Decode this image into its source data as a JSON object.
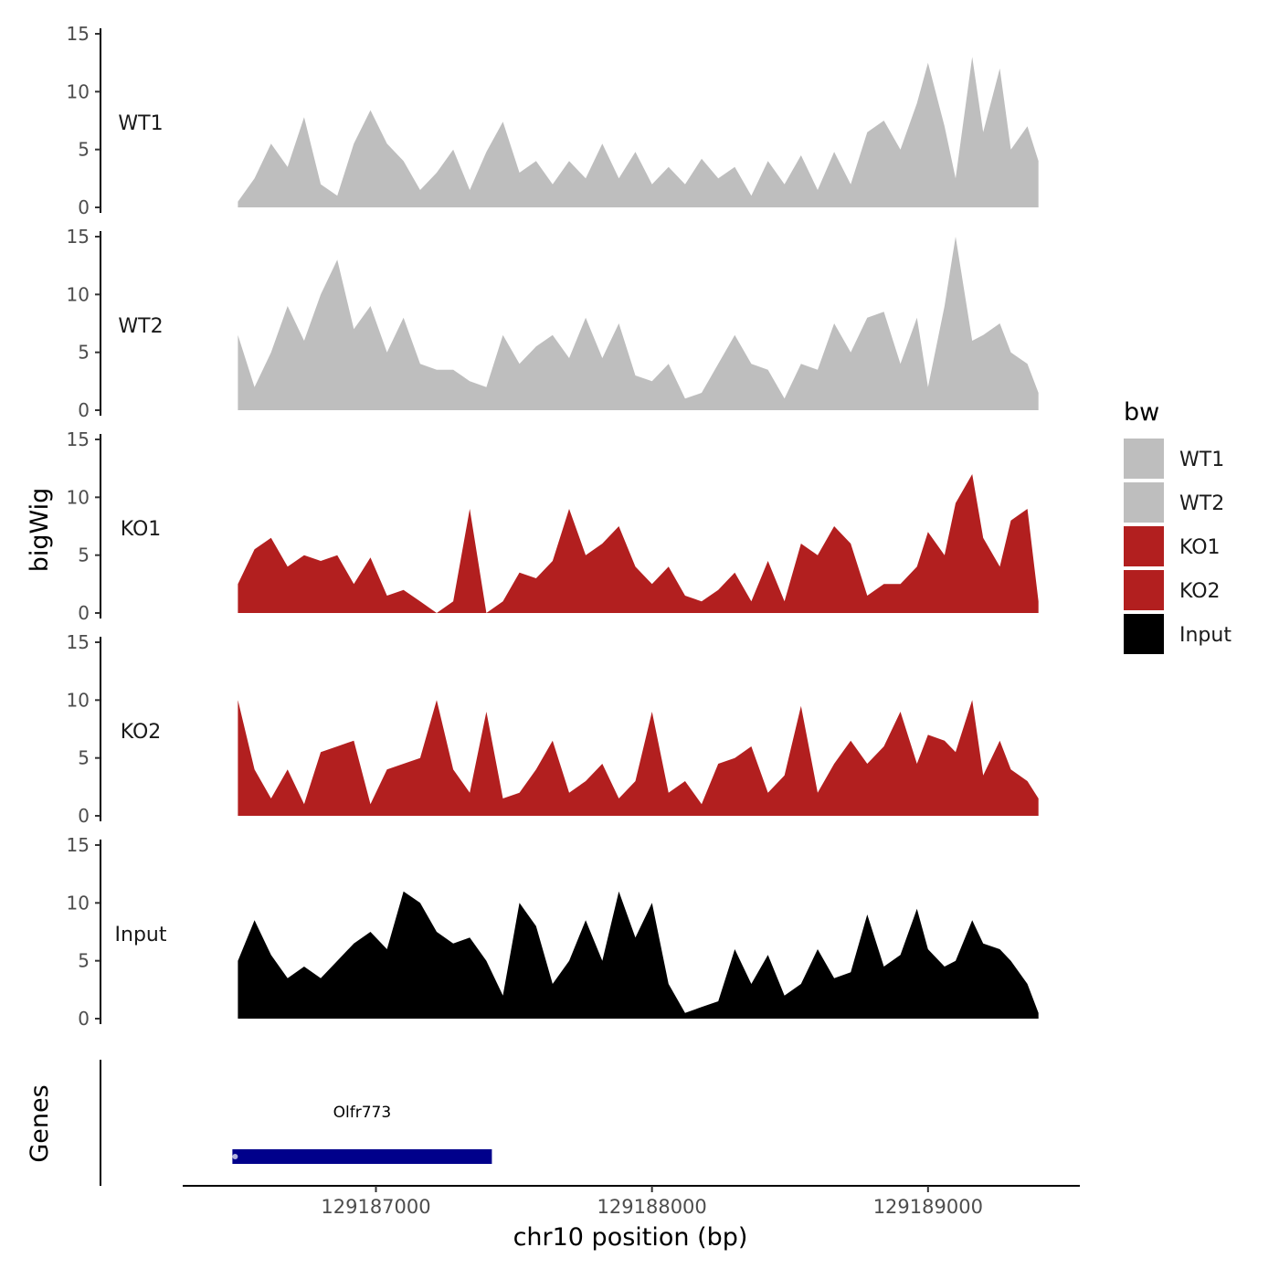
{
  "chart_data": {
    "type": "area",
    "xlabel": "chr10 position (bp)",
    "ylabel": "bigWig",
    "genes_label": "Genes",
    "x_range": [
      129186500,
      129189400
    ],
    "x_view": [
      129186300,
      129189550
    ],
    "x_ticks": [
      129187000,
      129188000,
      129189000
    ],
    "x_tick_labels": [
      "129187000",
      "129188000",
      "129189000"
    ],
    "ylim": [
      0,
      15
    ],
    "y_ticks": [
      0,
      5,
      10,
      15
    ],
    "y_tick_labels": [
      "0",
      "5",
      "10",
      "15"
    ],
    "legend": {
      "title": "bw",
      "items": [
        {
          "label": "WT1",
          "color": "#bebebe"
        },
        {
          "label": "WT2",
          "color": "#bebebe"
        },
        {
          "label": "KO1",
          "color": "#b21f1f"
        },
        {
          "label": "KO2",
          "color": "#b21f1f"
        },
        {
          "label": "Input",
          "color": "#000000"
        }
      ]
    },
    "series": [
      {
        "name": "WT1",
        "color": "#bebebe",
        "x": [
          129186500,
          129186560,
          129186620,
          129186680,
          129186740,
          129186800,
          129186860,
          129186920,
          129186980,
          129187040,
          129187100,
          129187160,
          129187220,
          129187280,
          129187340,
          129187400,
          129187460,
          129187520,
          129187580,
          129187640,
          129187700,
          129187760,
          129187820,
          129187880,
          129187940,
          129188000,
          129188060,
          129188120,
          129188180,
          129188240,
          129188300,
          129188360,
          129188420,
          129188480,
          129188540,
          129188600,
          129188660,
          129188720,
          129188780,
          129188840,
          129188900,
          129188960,
          129189000,
          129189060,
          129189100,
          129189160,
          129189200,
          129189260,
          129189300,
          129189360,
          129189400
        ],
        "values": [
          0.5,
          2.5,
          5.5,
          3.5,
          7.8,
          2,
          1,
          5.5,
          8.4,
          5.5,
          4,
          1.5,
          3,
          5,
          1.5,
          4.8,
          7.4,
          3,
          4,
          2,
          4,
          2.5,
          5.5,
          2.5,
          4.8,
          2,
          3.5,
          2,
          4.2,
          2.5,
          3.5,
          1,
          4,
          2,
          4.5,
          1.5,
          4.8,
          2,
          6.5,
          7.5,
          5,
          9,
          12.5,
          7,
          2.5,
          13,
          6.5,
          12,
          5,
          7,
          4
        ]
      },
      {
        "name": "WT2",
        "color": "#bebebe",
        "x": [
          129186500,
          129186560,
          129186620,
          129186680,
          129186740,
          129186800,
          129186860,
          129186920,
          129186980,
          129187040,
          129187100,
          129187160,
          129187220,
          129187280,
          129187340,
          129187400,
          129187460,
          129187520,
          129187580,
          129187640,
          129187700,
          129187760,
          129187820,
          129187880,
          129187940,
          129188000,
          129188060,
          129188120,
          129188180,
          129188240,
          129188300,
          129188360,
          129188420,
          129188480,
          129188540,
          129188600,
          129188660,
          129188720,
          129188780,
          129188840,
          129188900,
          129188960,
          129189000,
          129189060,
          129189100,
          129189160,
          129189200,
          129189260,
          129189300,
          129189360,
          129189400
        ],
        "values": [
          6.5,
          2,
          5,
          9,
          6,
          10,
          13,
          7,
          9,
          5,
          8,
          4,
          3.5,
          3.5,
          2.5,
          2,
          6.5,
          4,
          5.5,
          6.5,
          4.5,
          8,
          4.5,
          7.5,
          3,
          2.5,
          4,
          1,
          1.5,
          4,
          6.5,
          4,
          3.5,
          1,
          4,
          3.5,
          7.5,
          5,
          8,
          8.5,
          4,
          8,
          2,
          9,
          15,
          6,
          6.5,
          7.5,
          5,
          4,
          1.5
        ]
      },
      {
        "name": "KO1",
        "color": "#b21f1f",
        "x": [
          129186500,
          129186560,
          129186620,
          129186680,
          129186740,
          129186800,
          129186860,
          129186920,
          129186980,
          129187040,
          129187100,
          129187160,
          129187220,
          129187280,
          129187340,
          129187400,
          129187460,
          129187520,
          129187580,
          129187640,
          129187700,
          129187760,
          129187820,
          129187880,
          129187940,
          129188000,
          129188060,
          129188120,
          129188180,
          129188240,
          129188300,
          129188360,
          129188420,
          129188480,
          129188540,
          129188600,
          129188660,
          129188720,
          129188780,
          129188840,
          129188900,
          129188960,
          129189000,
          129189060,
          129189100,
          129189160,
          129189200,
          129189260,
          129189300,
          129189360,
          129189400
        ],
        "values": [
          2.5,
          5.5,
          6.5,
          4,
          5,
          4.5,
          5,
          2.5,
          4.8,
          1.5,
          2,
          1,
          0,
          1,
          9,
          0,
          1,
          3.5,
          3,
          4.5,
          9,
          5,
          6,
          7.5,
          4,
          2.5,
          4,
          1.5,
          1,
          2,
          3.5,
          1,
          4.5,
          1,
          6,
          5,
          7.5,
          6,
          1.5,
          2.5,
          2.5,
          4,
          7,
          5,
          9.5,
          12,
          6.5,
          4,
          8,
          9,
          1
        ]
      },
      {
        "name": "KO2",
        "color": "#b21f1f",
        "x": [
          129186500,
          129186560,
          129186620,
          129186680,
          129186740,
          129186800,
          129186860,
          129186920,
          129186980,
          129187040,
          129187100,
          129187160,
          129187220,
          129187280,
          129187340,
          129187400,
          129187460,
          129187520,
          129187580,
          129187640,
          129187700,
          129187760,
          129187820,
          129187880,
          129187940,
          129188000,
          129188060,
          129188120,
          129188180,
          129188240,
          129188300,
          129188360,
          129188420,
          129188480,
          129188540,
          129188600,
          129188660,
          129188720,
          129188780,
          129188840,
          129188900,
          129188960,
          129189000,
          129189060,
          129189100,
          129189160,
          129189200,
          129189260,
          129189300,
          129189360,
          129189400
        ],
        "values": [
          10,
          4,
          1.5,
          4,
          1,
          5.5,
          6,
          6.5,
          1,
          4,
          4.5,
          5,
          10,
          4,
          2,
          9,
          1.5,
          2,
          4,
          6.5,
          2,
          3,
          4.5,
          1.5,
          3,
          9,
          2,
          3,
          1,
          4.5,
          5,
          6,
          2,
          3.5,
          9.5,
          2,
          4.5,
          6.5,
          4.5,
          6,
          9,
          4.5,
          7,
          6.5,
          5.5,
          10,
          3.5,
          6.5,
          4,
          3,
          1.5
        ]
      },
      {
        "name": "Input",
        "color": "#000000",
        "x": [
          129186500,
          129186560,
          129186620,
          129186680,
          129186740,
          129186800,
          129186860,
          129186920,
          129186980,
          129187040,
          129187100,
          129187160,
          129187220,
          129187280,
          129187340,
          129187400,
          129187460,
          129187520,
          129187580,
          129187640,
          129187700,
          129187760,
          129187820,
          129187880,
          129187940,
          129188000,
          129188060,
          129188120,
          129188180,
          129188240,
          129188300,
          129188360,
          129188420,
          129188480,
          129188540,
          129188600,
          129188660,
          129188720,
          129188780,
          129188840,
          129188900,
          129188960,
          129189000,
          129189060,
          129189100,
          129189160,
          129189200,
          129189260,
          129189300,
          129189360,
          129189400
        ],
        "values": [
          5,
          8.5,
          5.5,
          3.5,
          4.5,
          3.5,
          5,
          6.5,
          7.5,
          6,
          11,
          10,
          7.5,
          6.5,
          7,
          5,
          2,
          10,
          8,
          3,
          5,
          8.5,
          5,
          11,
          7,
          10,
          3,
          0.5,
          1,
          1.5,
          6,
          3,
          5.5,
          2,
          3,
          6,
          3.5,
          4,
          9,
          4.5,
          5.5,
          9.5,
          6,
          4.5,
          5,
          8.5,
          6.5,
          6,
          5,
          3,
          0.5
        ]
      }
    ],
    "genes": [
      {
        "name": "Olfr773",
        "start": 129186480,
        "end": 129187420,
        "color": "#00008b"
      }
    ]
  }
}
